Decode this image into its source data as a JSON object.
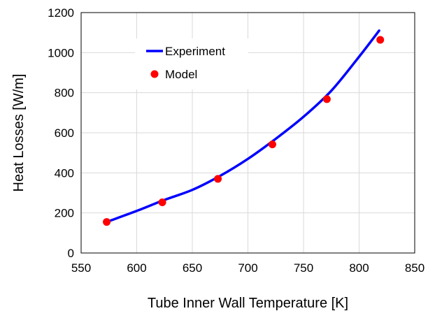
{
  "chart_data": {
    "type": "line",
    "title": "",
    "xlabel": "Tube Inner Wall Temperature [K]",
    "ylabel": "Heat Losses [W/m]",
    "xlim": [
      550,
      850
    ],
    "ylim": [
      0,
      1200
    ],
    "xticks": [
      550,
      600,
      650,
      700,
      750,
      800,
      850
    ],
    "yticks": [
      0,
      200,
      400,
      600,
      800,
      1000,
      1200
    ],
    "xtick_labels": [
      "550",
      "600",
      "650",
      "700",
      "750",
      "800",
      "850"
    ],
    "ytick_labels": [
      "0",
      "200",
      "400",
      "600",
      "800",
      "1000",
      "1200"
    ],
    "grid": "vertical and horizontal major gridlines",
    "legend_position": "upper-left inside plot",
    "series": [
      {
        "name": "Experiment",
        "style": "line",
        "color": "#0000ff",
        "x": [
          573,
          600,
          625,
          650,
          675,
          700,
          725,
          750,
          775,
          800,
          818
        ],
        "y": [
          155,
          210,
          265,
          315,
          385,
          470,
          570,
          680,
          810,
          980,
          1110
        ]
      },
      {
        "name": "Model",
        "style": "marker",
        "color": "#ff0000",
        "x": [
          573,
          623,
          673,
          722,
          771,
          819
        ],
        "y": [
          155,
          253,
          370,
          542,
          768,
          1064
        ]
      }
    ]
  }
}
